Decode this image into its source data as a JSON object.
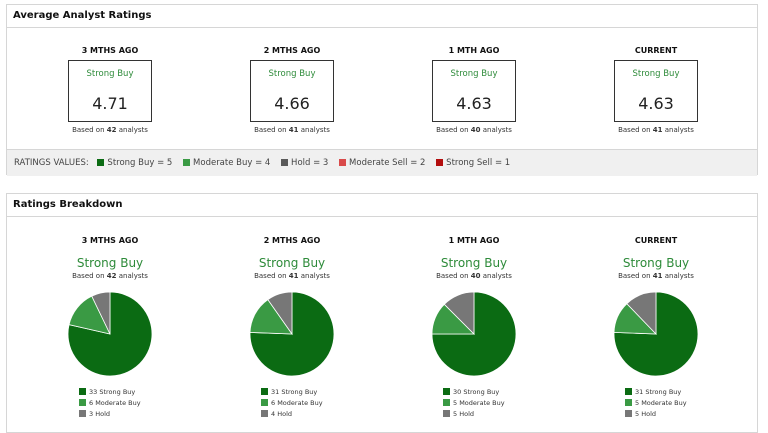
{
  "avg_panel": {
    "title": "Average Analyst Ratings",
    "columns": [
      {
        "head": "3 MTHS AGO",
        "rating": "Strong Buy",
        "score": "4.71",
        "based_prefix": "Based on",
        "count": "42",
        "based_suffix": "analysts"
      },
      {
        "head": "2 MTHS AGO",
        "rating": "Strong Buy",
        "score": "4.66",
        "based_prefix": "Based on",
        "count": "41",
        "based_suffix": "analysts"
      },
      {
        "head": "1 MTH AGO",
        "rating": "Strong Buy",
        "score": "4.63",
        "based_prefix": "Based on",
        "count": "40",
        "based_suffix": "analysts"
      },
      {
        "head": "CURRENT",
        "rating": "Strong Buy",
        "score": "4.63",
        "based_prefix": "Based on",
        "count": "41",
        "based_suffix": "analysts"
      }
    ],
    "legend": {
      "label": "RATINGS VALUES:",
      "items": [
        {
          "text": "Strong Buy = 5",
          "color": "#0b6b13"
        },
        {
          "text": "Moderate Buy = 4",
          "color": "#3a9a44"
        },
        {
          "text": "Hold = 3",
          "color": "#5a5a5a"
        },
        {
          "text": "Moderate Sell = 2",
          "color": "#d94a4a"
        },
        {
          "text": "Strong Sell = 1",
          "color": "#b30d0d"
        }
      ]
    }
  },
  "breakdown_panel": {
    "title": "Ratings Breakdown",
    "columns": [
      {
        "head": "3 MTHS AGO",
        "rating": "Strong Buy",
        "based_prefix": "Based on",
        "count": "42",
        "based_suffix": "analysts",
        "legend": [
          "33 Strong Buy",
          "6 Moderate Buy",
          "3 Hold"
        ]
      },
      {
        "head": "2 MTHS AGO",
        "rating": "Strong Buy",
        "based_prefix": "Based on",
        "count": "41",
        "based_suffix": "analysts",
        "legend": [
          "31 Strong Buy",
          "6 Moderate Buy",
          "4 Hold"
        ]
      },
      {
        "head": "1 MTH AGO",
        "rating": "Strong Buy",
        "based_prefix": "Based on",
        "count": "40",
        "based_suffix": "analysts",
        "legend": [
          "30 Strong Buy",
          "5 Moderate Buy",
          "5 Hold"
        ]
      },
      {
        "head": "CURRENT",
        "rating": "Strong Buy",
        "based_prefix": "Based on",
        "count": "41",
        "based_suffix": "analysts",
        "legend": [
          "31 Strong Buy",
          "5 Moderate Buy",
          "5 Hold"
        ]
      }
    ]
  },
  "chart_data": [
    {
      "type": "pie",
      "categories": [
        "Strong Buy",
        "Moderate Buy",
        "Hold"
      ],
      "values": [
        33,
        6,
        3
      ],
      "colors": [
        "#0b6b13",
        "#3a9a44",
        "#777777"
      ]
    },
    {
      "type": "pie",
      "categories": [
        "Strong Buy",
        "Moderate Buy",
        "Hold"
      ],
      "values": [
        31,
        6,
        4
      ],
      "colors": [
        "#0b6b13",
        "#3a9a44",
        "#777777"
      ]
    },
    {
      "type": "pie",
      "categories": [
        "Strong Buy",
        "Moderate Buy",
        "Hold"
      ],
      "values": [
        30,
        5,
        5
      ],
      "colors": [
        "#0b6b13",
        "#3a9a44",
        "#777777"
      ]
    },
    {
      "type": "pie",
      "categories": [
        "Strong Buy",
        "Moderate Buy",
        "Hold"
      ],
      "values": [
        31,
        5,
        5
      ],
      "colors": [
        "#0b6b13",
        "#3a9a44",
        "#777777"
      ]
    }
  ]
}
